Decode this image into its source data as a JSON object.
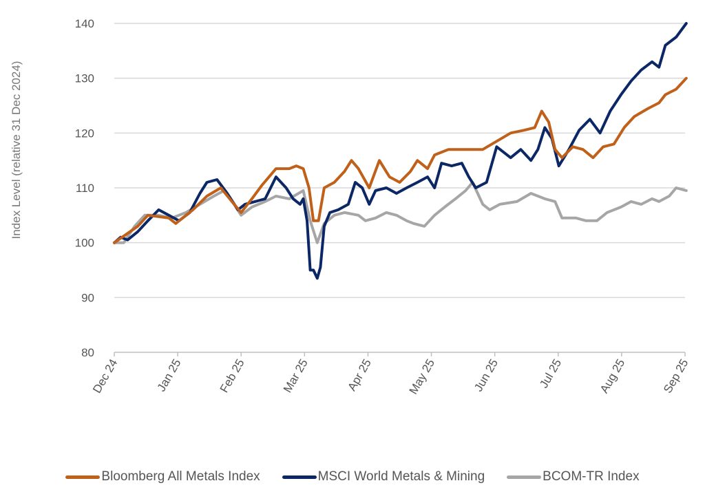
{
  "chart_data": {
    "type": "line",
    "title": "",
    "xlabel": "",
    "ylabel": "Index Level (relative 31 Dec 2024)",
    "x_unit": "months since Dec 24",
    "xlim": [
      0,
      9
    ],
    "ylim": [
      80,
      140
    ],
    "yticks": [
      80,
      90,
      100,
      110,
      120,
      130,
      140
    ],
    "xtick_labels": [
      "Dec 24",
      "Jan 25",
      "Feb 25",
      "Mar 25",
      "Apr 25",
      "May 25",
      "Jun 25",
      "Jul 25",
      "Aug 25",
      "Sep 25"
    ],
    "grid": "horizontal",
    "legend_position": "bottom",
    "series": [
      {
        "name": "Bloomberg All Metals Index",
        "color": "#C0611B",
        "x": [
          0,
          0.37,
          0.53,
          0.86,
          0.97,
          1.24,
          1.46,
          1.68,
          1.89,
          2.0,
          2.17,
          2.33,
          2.55,
          2.76,
          2.87,
          2.98,
          3.07,
          3.14,
          3.22,
          3.31,
          3.47,
          3.63,
          3.74,
          3.85,
          4.02,
          4.18,
          4.34,
          4.5,
          4.67,
          4.78,
          4.94,
          5.05,
          5.27,
          5.59,
          5.81,
          6.03,
          6.25,
          6.46,
          6.63,
          6.74,
          6.85,
          6.95,
          7.06,
          7.23,
          7.39,
          7.55,
          7.71,
          7.88,
          8.04,
          8.2,
          8.42,
          8.59,
          8.69,
          8.86,
          9.02
        ],
        "y": [
          100,
          103,
          105,
          104.5,
          103.5,
          106,
          108.5,
          110,
          107,
          105.5,
          108,
          110.5,
          113.5,
          113.5,
          114,
          113.5,
          110,
          104,
          104,
          110,
          111,
          113,
          115,
          113.5,
          110,
          115,
          112,
          111,
          113,
          115,
          113.5,
          116,
          117,
          117,
          117,
          118.5,
          120,
          120.5,
          121,
          124,
          122,
          117,
          115.5,
          117.5,
          117,
          115.5,
          117.5,
          118,
          121,
          123,
          124.5,
          125.5,
          127,
          128,
          130
        ]
      },
      {
        "name": "MSCI World Metals & Mining",
        "color": "#0B2765",
        "x": [
          0,
          0.1,
          0.21,
          0.37,
          0.53,
          0.7,
          0.86,
          1.02,
          1.19,
          1.35,
          1.46,
          1.62,
          1.78,
          1.95,
          2.06,
          2.22,
          2.38,
          2.55,
          2.71,
          2.82,
          2.93,
          2.98,
          3.04,
          3.09,
          3.14,
          3.2,
          3.25,
          3.31,
          3.4,
          3.53,
          3.69,
          3.8,
          3.91,
          4.02,
          4.12,
          4.29,
          4.45,
          4.61,
          4.78,
          4.94,
          5.05,
          5.16,
          5.32,
          5.48,
          5.59,
          5.7,
          5.87,
          6.03,
          6.25,
          6.41,
          6.57,
          6.68,
          6.79,
          6.9,
          7.01,
          7.17,
          7.33,
          7.5,
          7.66,
          7.82,
          7.99,
          8.15,
          8.31,
          8.48,
          8.59,
          8.69,
          8.86,
          9.02
        ],
        "y": [
          100,
          101,
          100.5,
          102,
          104,
          106,
          105,
          104,
          105.5,
          109,
          111,
          111.5,
          109,
          106,
          107,
          107.5,
          108,
          112,
          110,
          108,
          107,
          108,
          104,
          95,
          95,
          93.5,
          95.5,
          103,
          105.5,
          106,
          107,
          111,
          110,
          107,
          109.5,
          110,
          109,
          110,
          111,
          112,
          110,
          114.5,
          114,
          114.5,
          112,
          110,
          111,
          117.5,
          115.5,
          117,
          115,
          117,
          121,
          119,
          114,
          117,
          120.5,
          122.5,
          120,
          124,
          127,
          129.5,
          131.5,
          133,
          132,
          136,
          137.5,
          140
        ]
      },
      {
        "name": "BCOM-TR Index",
        "color": "#A6A6A6",
        "x": [
          0,
          0.15,
          0.32,
          0.48,
          0.7,
          0.91,
          1.13,
          1.35,
          1.57,
          1.73,
          1.89,
          2.0,
          2.17,
          2.38,
          2.55,
          2.76,
          2.98,
          3.09,
          3.2,
          3.31,
          3.47,
          3.63,
          3.85,
          3.96,
          4.12,
          4.29,
          4.45,
          4.61,
          4.72,
          4.89,
          5.05,
          5.21,
          5.38,
          5.54,
          5.65,
          5.81,
          5.92,
          6.08,
          6.35,
          6.57,
          6.79,
          6.95,
          7.06,
          7.28,
          7.44,
          7.61,
          7.77,
          7.99,
          8.15,
          8.31,
          8.48,
          8.59,
          8.75,
          8.86,
          9.02
        ],
        "y": [
          100,
          100,
          103,
          105,
          105,
          104.5,
          105.5,
          107,
          108.5,
          109.5,
          107,
          105,
          106.5,
          107.5,
          108.5,
          108,
          109.5,
          104,
          100,
          103.5,
          105,
          105.5,
          105,
          104,
          104.5,
          105.5,
          105,
          104,
          103.5,
          103,
          105,
          106.5,
          108,
          109.5,
          111,
          107,
          106,
          107,
          107.5,
          109,
          108,
          107.5,
          104.5,
          104.5,
          104,
          104,
          105.5,
          106.5,
          107.5,
          107,
          108,
          107.5,
          108.5,
          110,
          109.5
        ]
      }
    ]
  }
}
